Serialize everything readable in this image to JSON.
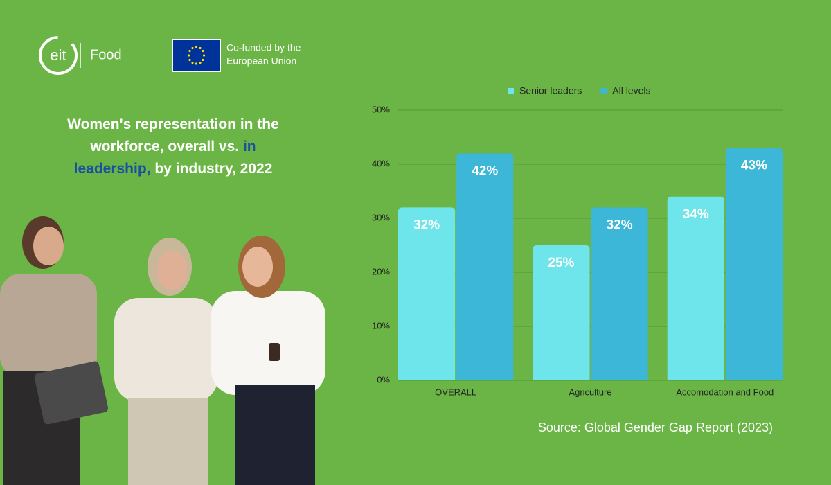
{
  "header": {
    "logo_mark": "eit",
    "logo_name": "Food",
    "eu_text": [
      "Co-funded by the",
      "European Union"
    ]
  },
  "chart_data": {
    "type": "bar",
    "title": [
      "Women's representation in the workforce, overall vs.",
      "in leadership,",
      "by industry, 2022"
    ],
    "categories": [
      "OVERALL",
      "Agriculture",
      "Accomodation and Food"
    ],
    "series": [
      {
        "name": "Senior leaders",
        "color": "#6de5ea",
        "values": [
          32,
          25,
          34
        ],
        "value_labels": [
          "32%",
          "25%",
          "34%"
        ]
      },
      {
        "name": "All levels",
        "color": "#3db7d7",
        "values": [
          42,
          32,
          43
        ],
        "value_labels": [
          "42%",
          "32%",
          "43%"
        ]
      }
    ],
    "ylim": [
      0,
      50
    ],
    "yticks": [
      {
        "value": 0,
        "label": "0%"
      },
      {
        "value": 10,
        "label": "10%"
      },
      {
        "value": 20,
        "label": "20%"
      },
      {
        "value": 30,
        "label": "30%"
      },
      {
        "value": 40,
        "label": "40%"
      },
      {
        "value": 50,
        "label": "50%"
      }
    ],
    "grid": true,
    "legend": "top",
    "source": "Source: Global Gender Gap Report (2023)"
  }
}
